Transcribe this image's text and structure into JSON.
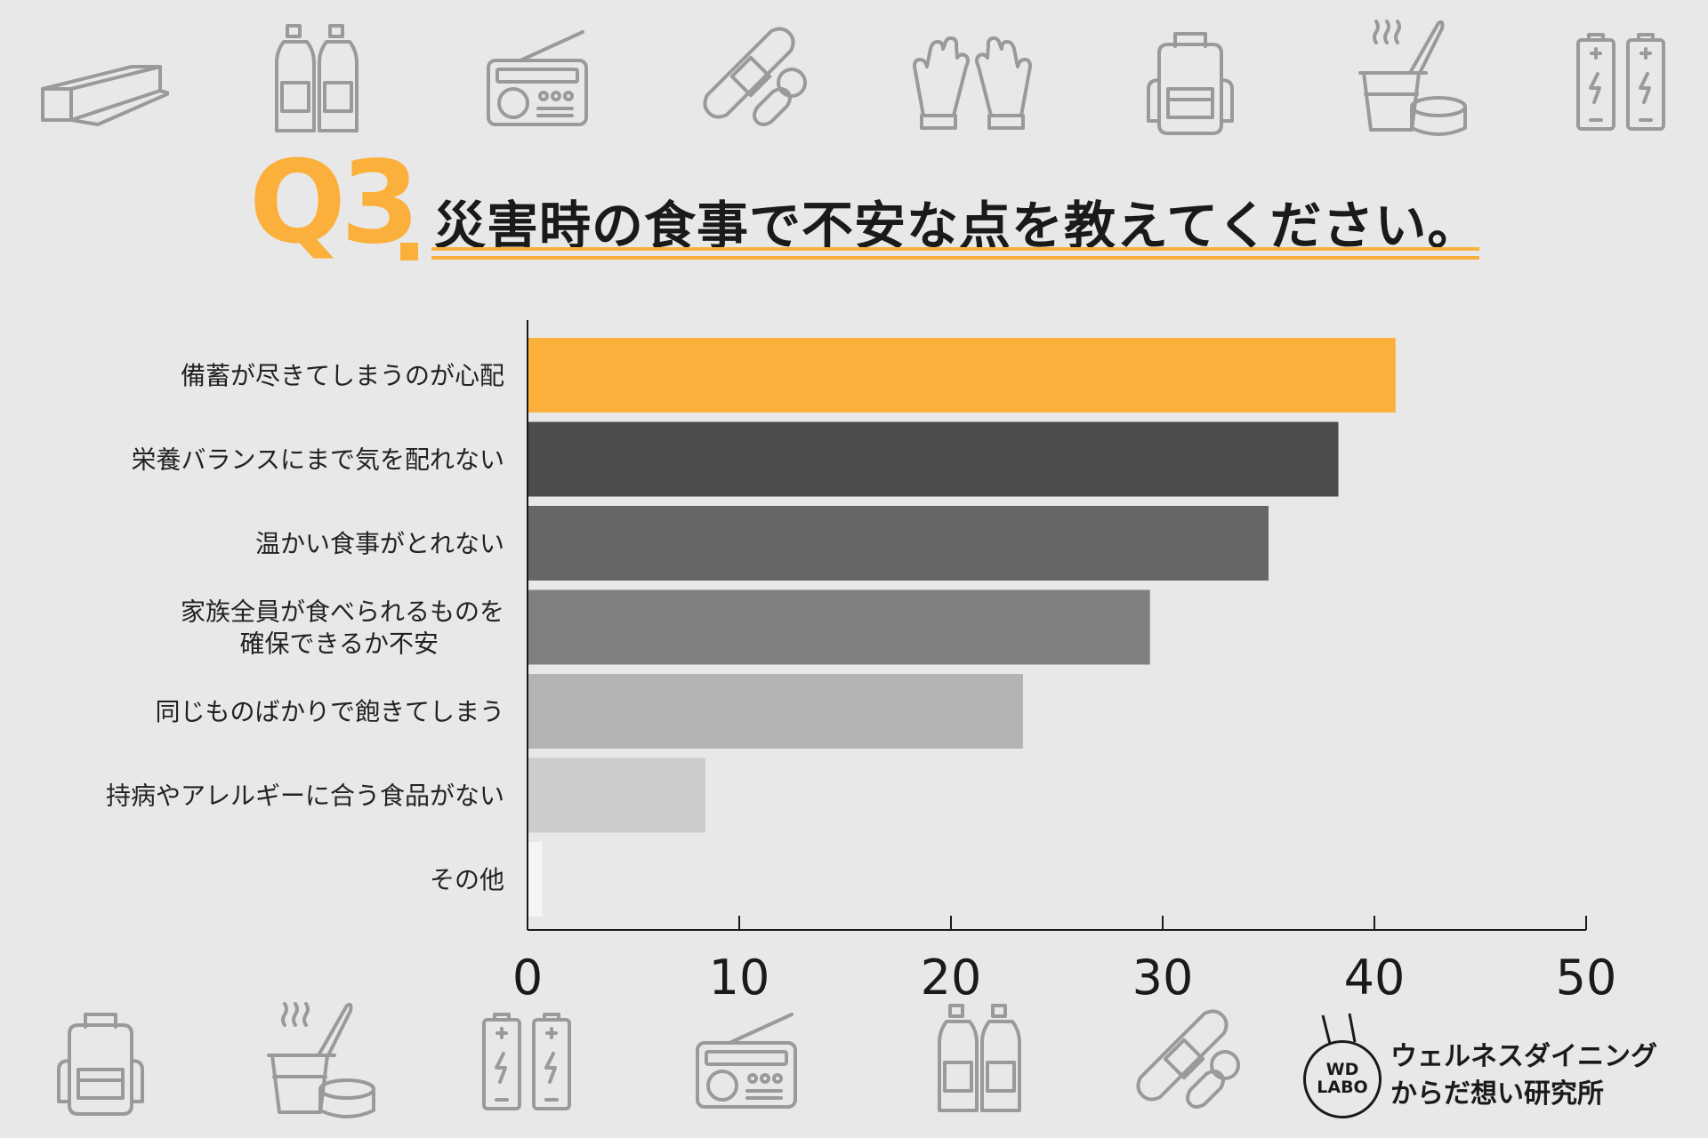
{
  "header": {
    "q_number": "Q3",
    "title": "災害時の食事で不安な点を教えてください。"
  },
  "colors": {
    "accent": "#FBB03B",
    "title_text": "#1a1a1a",
    "icon_gray": "#9a9a9a",
    "background": "#e8e8e8"
  },
  "decor_icons": {
    "top": [
      "foil-wrap-icon",
      "water-bottles-icon",
      "radio-icon",
      "bandage-pills-icon",
      "gloves-icon",
      "backpack-icon",
      "cup-noodle-canned-food-icon",
      "batteries-icon"
    ],
    "bottom": [
      "backpack-icon",
      "cup-noodle-canned-food-icon",
      "batteries-icon",
      "radio-icon",
      "water-bottles-icon",
      "bandage-pills-icon"
    ]
  },
  "chart_data": {
    "type": "bar",
    "orientation": "horizontal",
    "title": "災害時の食事で不安な点を教えてください。",
    "categories": [
      "備蓄が尽きてしまうのが心配",
      "栄養バランスにまで気を配れない",
      "温かい食事がとれない",
      "家族全員が食べられるものを\n確保できるか不安",
      "同じものばかりで飽きてしまう",
      "持病やアレルギーに合う食品がない",
      "その他"
    ],
    "values": [
      41.0,
      38.3,
      35.0,
      29.4,
      23.4,
      8.4,
      0.7
    ],
    "bar_colors": [
      "#FBB03B",
      "#4d4d4d",
      "#666666",
      "#808080",
      "#b3b3b3",
      "#cccccc",
      "#f5f5f5"
    ],
    "xlim": [
      0,
      50
    ],
    "xticks": [
      0,
      10,
      20,
      30,
      40,
      50
    ],
    "xlabel": "",
    "ylabel": "",
    "grid": false,
    "legend": "none"
  },
  "logo": {
    "badge_line1": "WD",
    "badge_line2": "LABO",
    "name_line1": "ウェルネスダイニング",
    "name_line2": "からだ想い研究所"
  }
}
